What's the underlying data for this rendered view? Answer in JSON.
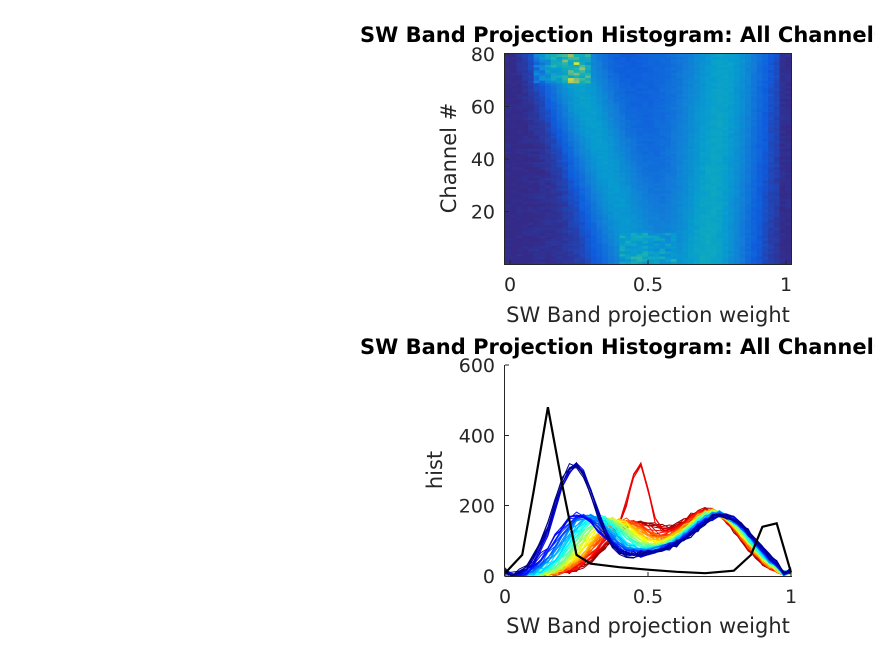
{
  "chart_data": [
    {
      "type": "heatmap",
      "title": "SW Band Projection Histogram: All Channels",
      "xlabel": "SW Band projection weight",
      "ylabel": "Channel #",
      "xlim": [
        0,
        1
      ],
      "ylim": [
        0,
        80
      ],
      "xticks": [
        "0",
        "0.5",
        "1"
      ],
      "yticks": [
        "20",
        "40",
        "60",
        "80"
      ],
      "colormap": "parula",
      "channels": 80,
      "bins": 50,
      "grid": false,
      "notes_visible": "low values in left and right columns; bright peak near 0.15-0.25 for high channels (70-80); diagonal band toward 0.5-0.6 for low channels"
    },
    {
      "type": "line",
      "title": "SW Band Projection Histogram: All Channels",
      "xlabel": "SW Band projection weight",
      "ylabel": "hist",
      "xlim": [
        0,
        1
      ],
      "ylim": [
        0,
        600
      ],
      "xticks": [
        "0",
        "0.5",
        "1"
      ],
      "yticks": [
        "0",
        "200",
        "400",
        "600"
      ],
      "grid": false,
      "series_count": 80,
      "colormap": "jet",
      "highlight_series": {
        "color": "#000000",
        "x": [
          0,
          0.06,
          0.1,
          0.15,
          0.2,
          0.25,
          0.3,
          0.4,
          0.5,
          0.6,
          0.7,
          0.8,
          0.86,
          0.9,
          0.95,
          1.0
        ],
        "y": [
          8,
          60,
          240,
          480,
          260,
          60,
          35,
          25,
          18,
          12,
          8,
          15,
          60,
          140,
          150,
          10
        ]
      }
    }
  ]
}
